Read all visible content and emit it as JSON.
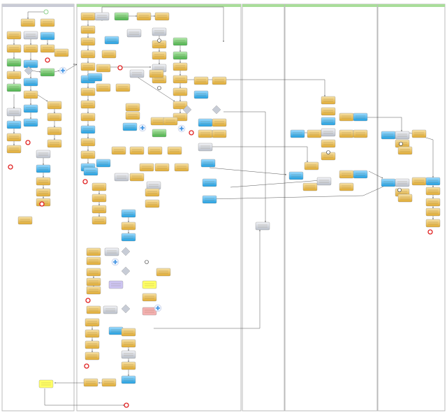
{
  "diagram": {
    "type": "bpmn-process",
    "colors": {
      "task_gold": "#e6b84c",
      "task_blue": "#3cb2ea",
      "task_gray": "#d3d7df",
      "task_green": "#6cc46c",
      "task_yellow": "#ffff66",
      "task_purple": "#cdc4f2",
      "task_pink": "#f4b0b0",
      "pool_header_gray": "#c9cbd6",
      "pool_header_green": "#a9dd9a",
      "end_event": "#e02020",
      "start_event": "#8fd28f",
      "gateway": "#c7ccd6",
      "parallel_gateway": "#3a8fe0",
      "connector": "#444444"
    }
  }
}
